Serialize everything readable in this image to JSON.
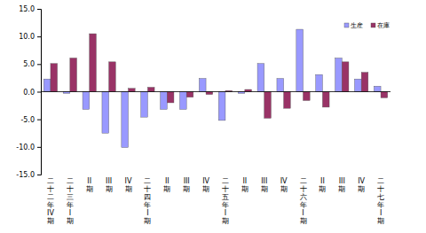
{
  "chart_data": {
    "type": "bar",
    "categories": [
      "二十二年IV期",
      "二十三年I期",
      "II期",
      "III期",
      "IV期",
      "二十四年I期",
      "II期",
      "III期",
      "IV期",
      "二十五年I期",
      "II期",
      "III期",
      "IV期",
      "二十六年I期",
      "II期",
      "III期",
      "IV期",
      "二十七年I期"
    ],
    "series": [
      {
        "name": "生産",
        "color": "#9999ff",
        "values": [
          2.3,
          -0.3,
          -3.2,
          -7.5,
          -10.1,
          -4.6,
          -3.2,
          -3.2,
          2.4,
          -5.2,
          -0.3,
          5.1,
          2.4,
          11.3,
          3.1,
          6.1,
          2.3,
          1.0
        ]
      },
      {
        "name": "在庫",
        "color": "#993366",
        "values": [
          5.1,
          6.1,
          10.5,
          5.4,
          0.6,
          0.8,
          -2.0,
          -1.0,
          -0.5,
          0.2,
          0.4,
          -4.8,
          -3.0,
          -1.6,
          -2.8,
          5.4,
          3.5,
          -1.1
        ]
      }
    ],
    "ylim": [
      -15,
      15
    ],
    "yticks": [
      {
        "value": -15,
        "label": "-15.0"
      },
      {
        "value": -10,
        "label": "-10.0"
      },
      {
        "value": -5,
        "label": "-5.0"
      },
      {
        "value": 0,
        "label": "0.0"
      },
      {
        "value": 5,
        "label": "5.0"
      },
      {
        "value": 10,
        "label": "10.0"
      },
      {
        "value": 15,
        "label": "15.0"
      }
    ],
    "grid": false,
    "legend": "top-right"
  }
}
